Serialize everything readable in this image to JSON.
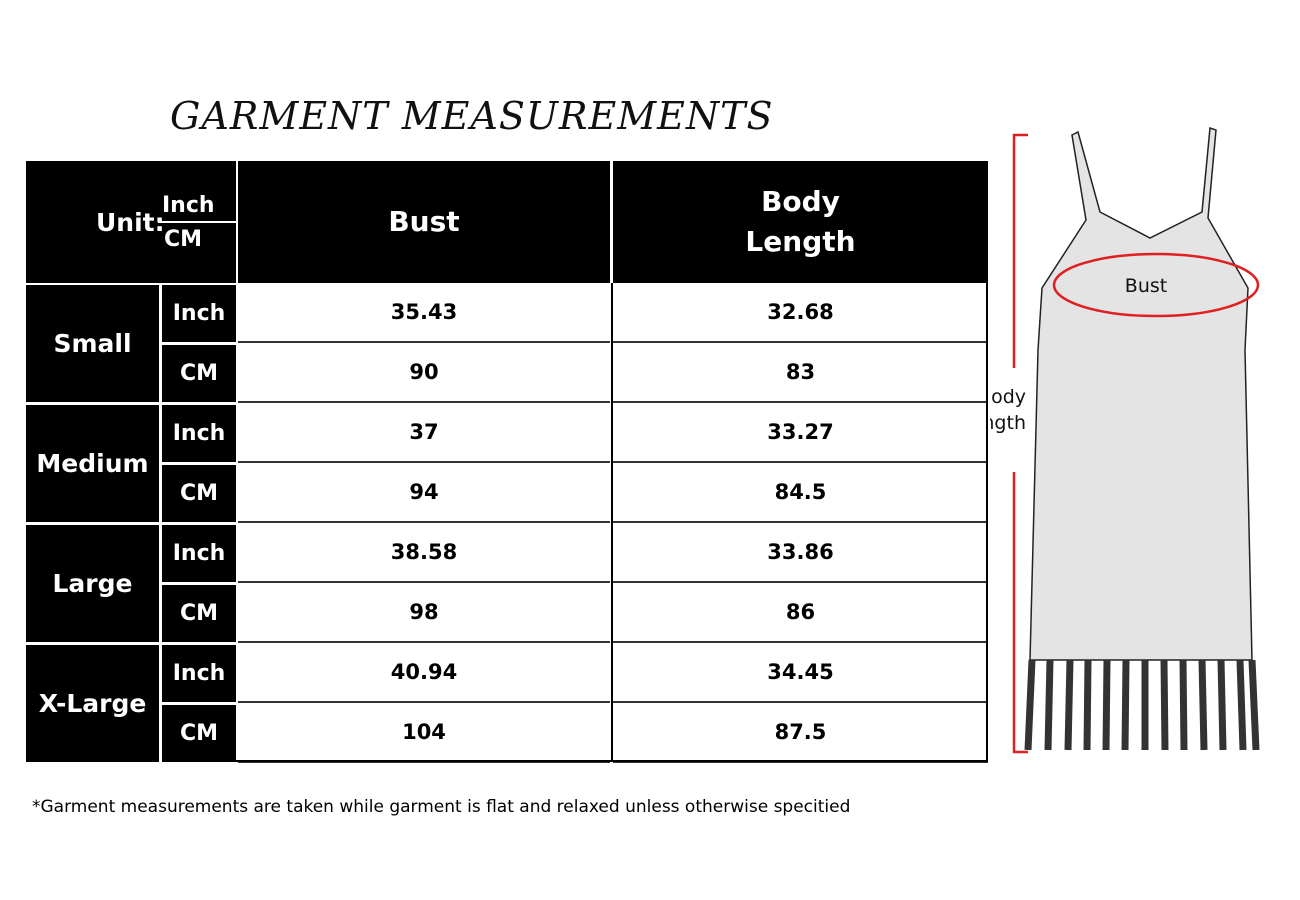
{
  "title": "GARMENT MEASUREMENTS",
  "table": {
    "unit_label": "Unit:",
    "unit_top": "Inch",
    "unit_bottom": "CM",
    "columns": [
      "Bust",
      "Body Length"
    ],
    "rows": [
      {
        "size": "Small",
        "inch": {
          "unit": "Inch",
          "bust": "35.43",
          "length": "32.68"
        },
        "cm": {
          "unit": "CM",
          "bust": "90",
          "length": "83"
        }
      },
      {
        "size": "Medium",
        "inch": {
          "unit": "Inch",
          "bust": "37",
          "length": "33.27"
        },
        "cm": {
          "unit": "CM",
          "bust": "94",
          "length": "84.5"
        }
      },
      {
        "size": "Large",
        "inch": {
          "unit": "Inch",
          "bust": "38.58",
          "length": "33.86"
        },
        "cm": {
          "unit": "CM",
          "bust": "98",
          "length": "86"
        }
      },
      {
        "size": "X-Large",
        "inch": {
          "unit": "Inch",
          "bust": "40.94",
          "length": "34.45"
        },
        "cm": {
          "unit": "CM",
          "bust": "104",
          "length": "87.5"
        }
      }
    ]
  },
  "diagram": {
    "bust_label": "Bust",
    "length_label": "Body\nLength",
    "accent_color": "#e02020"
  },
  "footnote": "*Garment measurements are taken while garment is flat and relaxed unless otherwise specitied"
}
